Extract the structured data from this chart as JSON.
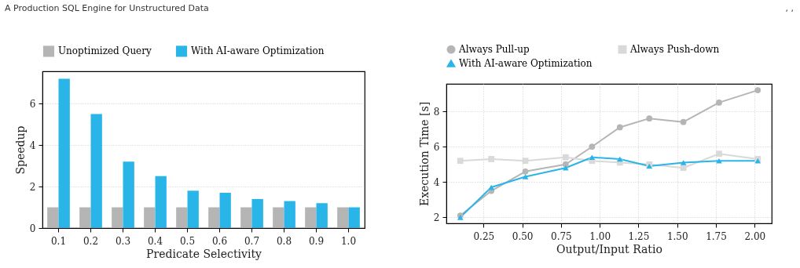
{
  "chart_data": [
    {
      "type": "bar",
      "title": "A Production SQL Engine for Unstructured Data",
      "xlabel": "Predicate Selectivity",
      "ylabel": "Speedup",
      "categories": [
        "0.1",
        "0.2",
        "0.3",
        "0.4",
        "0.5",
        "0.6",
        "0.7",
        "0.8",
        "0.9",
        "1.0"
      ],
      "series": [
        {
          "name": "Unoptimized Query",
          "color": "#b5b5b5",
          "values": [
            1,
            1,
            1,
            1,
            1,
            1,
            1,
            1,
            1,
            1
          ]
        },
        {
          "name": "With AI-aware Optimization",
          "color": "#29b5e8",
          "values": [
            7.2,
            5.5,
            3.2,
            2.5,
            1.8,
            1.7,
            1.4,
            1.3,
            1.2,
            1.0
          ]
        }
      ],
      "ylim": [
        0,
        7.56
      ],
      "yticks": [
        0,
        2,
        4,
        6
      ],
      "grid": "y",
      "legend": "top"
    },
    {
      "type": "line",
      "annotations": [
        ", ,"
      ],
      "xlabel": "Output/Input Ratio",
      "ylabel": "Execution Time [s]",
      "x": [
        0.1,
        0.3,
        0.52,
        0.78,
        0.95,
        1.13,
        1.32,
        1.54,
        1.77,
        2.02
      ],
      "series": [
        {
          "name": "Always Pull-up",
          "color": "#b5b5b5",
          "marker": "circle",
          "values": [
            2.1,
            3.5,
            4.6,
            5.0,
            6.0,
            7.1,
            7.6,
            7.4,
            8.5,
            9.2
          ]
        },
        {
          "name": "Always Push-down",
          "color": "#d9d9d9",
          "marker": "square",
          "values": [
            5.2,
            5.3,
            5.2,
            5.4,
            5.2,
            5.1,
            5.0,
            4.8,
            5.6,
            5.3
          ]
        },
        {
          "name": "With AI-aware Optimization",
          "color": "#29b5e8",
          "marker": "triangle",
          "values": [
            2.0,
            3.7,
            4.3,
            4.8,
            5.4,
            5.3,
            4.9,
            5.1,
            5.2,
            5.2
          ]
        }
      ],
      "xlim": [
        0.01,
        2.11
      ],
      "xticks": [
        0.25,
        {
          "value": 0.5,
          "label": "0.50"
        },
        0.75,
        {
          "value": 1,
          "label": "1.00"
        },
        1.25,
        {
          "value": 1.5,
          "label": "1.50"
        },
        1.75,
        {
          "value": 2,
          "label": "2.00"
        }
      ],
      "ylim": [
        1.66,
        9.56
      ],
      "yticks": [
        2,
        4,
        6,
        8
      ],
      "grid": true,
      "legend": "top",
      "line_style": "solid"
    }
  ]
}
